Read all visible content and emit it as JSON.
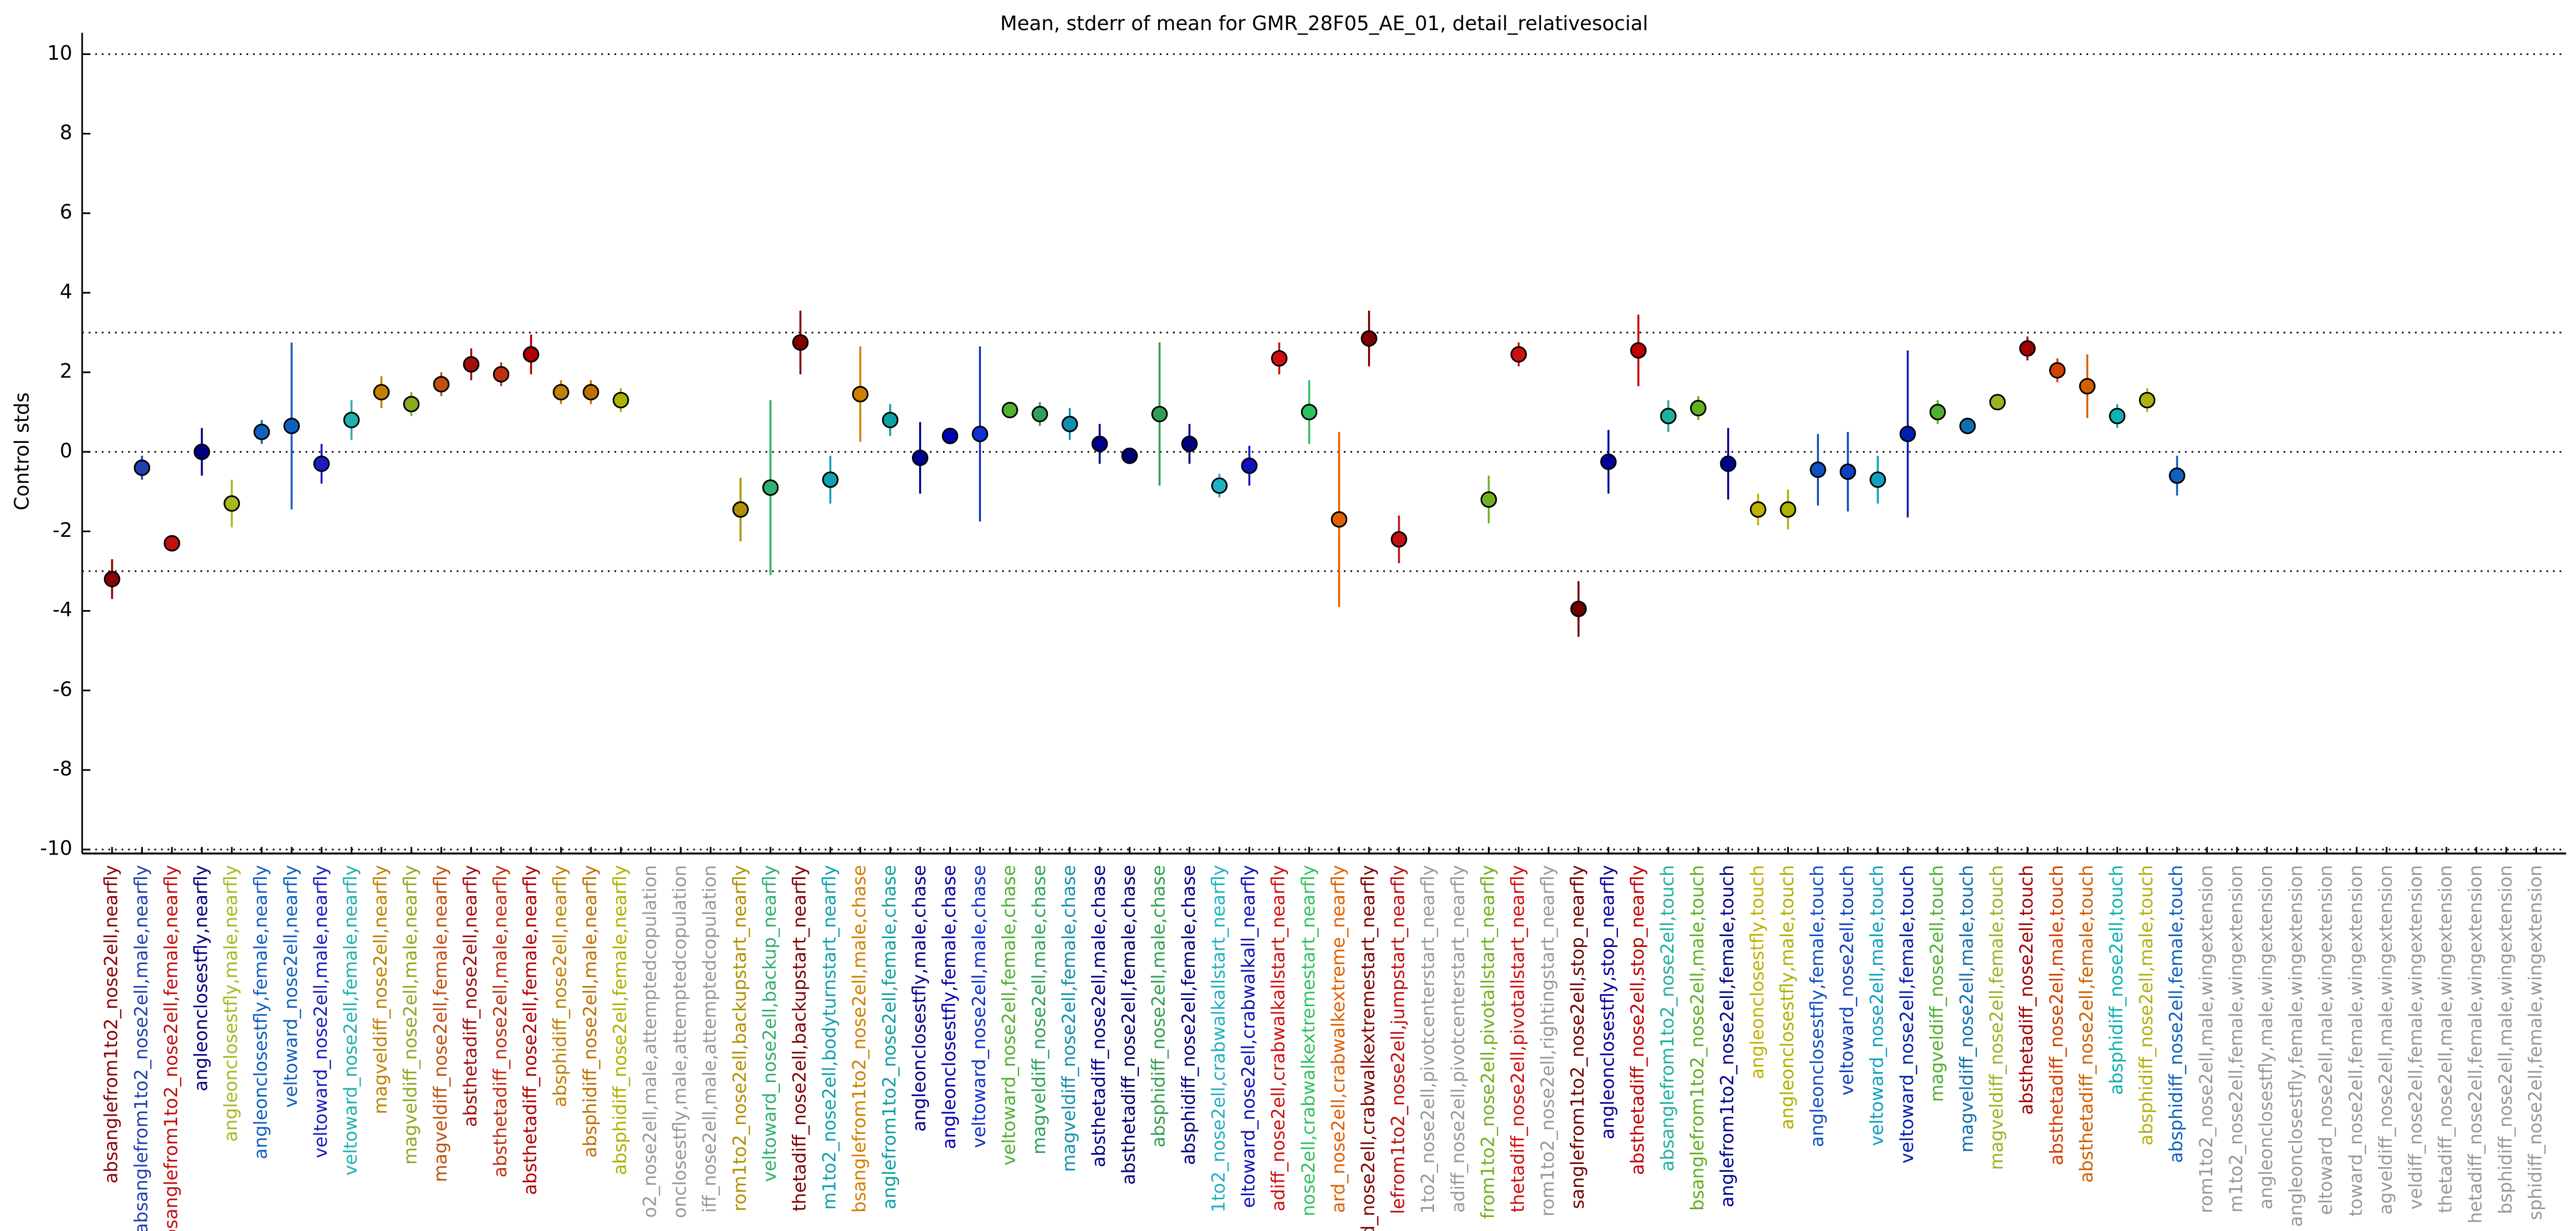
{
  "chart_data": {
    "type": "errorbar",
    "title": "Mean, stderr of mean for GMR_28F05_AE_01, detail_relativesocial",
    "y_label": "Control stds",
    "categories": [
      "absanglefrom1to2_nose2ell,nearfly",
      "absanglefrom1to2_nose2ell,male,nearfly",
      "absanglefrom1to2_nose2ell,female,nearfly",
      "angleonclosestfly,nearfly",
      "angleonclosestfly,male,nearfly",
      "angleonclosestfly,female,nearfly",
      "veltoward_nose2ell,nearfly",
      "veltoward_nose2ell,male,nearfly",
      "veltoward_nose2ell,female,nearfly",
      "magveldiff_nose2ell,nearfly",
      "magveldiff_nose2ell,male,nearfly",
      "magveldiff_nose2ell,female,nearfly",
      "absthetadiff_nose2ell,nearfly",
      "absthetadiff_nose2ell,male,nearfly",
      "absthetadiff_nose2ell,female,nearfly",
      "absphidiff_nose2ell,nearfly",
      "absphidiff_nose2ell,male,nearfly",
      "absphidiff_nose2ell,female,nearfly",
      "o2_nose2ell,male,attemptedcopulation",
      "onclosestfly,male,attemptedcopulation",
      "iff_nose2ell,male,attemptedcopulation",
      "rom1to2_nose2ell,backupstart_nearfly",
      "veltoward_nose2ell,backup_nearfly",
      "thetadiff_nose2ell,backupstart_nearfly",
      "m1to2_nose2ell,bodyturnstart_nearfly",
      "bsanglefrom1to2_nose2ell,male,chase",
      "anglefrom1to2_nose2ell,female,chase",
      "angleonclosestfly,male,chase",
      "angleonclosestfly,female,chase",
      "veltoward_nose2ell,male,chase",
      "veltoward_nose2ell,female,chase",
      "magveldiff_nose2ell,male,chase",
      "magveldiff_nose2ell,female,chase",
      "absthetadiff_nose2ell,male,chase",
      "absthetadiff_nose2ell,female,chase",
      "absphidiff_nose2ell,male,chase",
      "absphidiff_nose2ell,female,chase",
      "1to2_nose2ell,crabwalkallstart_nearfly",
      "eltoward_nose2ell,crabwalkall_nearfly",
      "adiff_nose2ell,crabwalkallstart_nearfly",
      "nose2ell,crabwalkextremestart_nearfly",
      "ard_nose2ell,crabwalkextreme_nearfly",
      "ard_nose2ell,crabwalkextremestart_nearfly",
      "lefrom1to2_nose2ell,jumpstart_nearfly",
      "1to2_nose2ell,pivotcenterstart_nearfly",
      "adiff_nose2ell,pivotcenterstart_nearfly",
      "from1to2_nose2ell,pivotallstart_nearfly",
      "thetadiff_nose2ell,pivotallstart_nearfly",
      "rom1to2_nose2ell,rightingstart_nearfly",
      "sanglefrom1to2_nose2ell,stop_nearfly",
      "angleonclosestfly,stop_nearfly",
      "absthetadiff_nose2ell,stop_nearfly",
      "absanglefrom1to2_nose2ell,touch",
      "bsanglefrom1to2_nose2ell,male,touch",
      "anglefrom1to2_nose2ell,female,touch",
      "angleonclosestfly,touch",
      "angleonclosestfly,male,touch",
      "angleonclosestfly,female,touch",
      "veltoward_nose2ell,touch",
      "veltoward_nose2ell,male,touch",
      "veltoward_nose2ell,female,touch",
      "magveldiff_nose2ell,touch",
      "magveldiff_nose2ell,male,touch",
      "magveldiff_nose2ell,female,touch",
      "absthetadiff_nose2ell,touch",
      "absthetadiff_nose2ell,male,touch",
      "absthetadiff_nose2ell,female,touch",
      "absphidiff_nose2ell,touch",
      "absphidiff_nose2ell,male,touch",
      "absphidiff_nose2ell,female,touch",
      "rom1to2_nose2ell,male,wingextension",
      "m1to2_nose2ell,female,wingextension",
      "angleonclosestfly,male,wingextension",
      "angleonclosestfly,female,wingextension",
      "eltoward_nose2ell,male,wingextension",
      "toward_nose2ell,female,wingextension",
      "agveldiff_nose2ell,male,wingextension",
      "veldiff_nose2ell,female,wingextension",
      "thetadiff_nose2ell,male,wingextension",
      "hetadiff_nose2ell,female,wingextension",
      "bsphidiff_nose2ell,male,wingextension",
      "sphidiff_nose2ell,female,wingextension"
    ],
    "values": [
      -3.2,
      -0.4,
      -2.3,
      0.0,
      -1.3,
      0.5,
      0.65,
      -0.3,
      0.8,
      1.5,
      1.2,
      1.7,
      2.2,
      1.95,
      2.45,
      1.5,
      1.5,
      1.3,
      null,
      null,
      null,
      -1.45,
      -0.9,
      2.75,
      -0.7,
      1.45,
      0.8,
      -0.15,
      0.4,
      0.45,
      1.05,
      0.95,
      0.7,
      0.2,
      -0.1,
      0.95,
      0.2,
      -0.85,
      -0.35,
      2.35,
      1.0,
      -1.7,
      2.85,
      -2.2,
      null,
      null,
      -1.2,
      2.45,
      null,
      -3.95,
      -0.25,
      2.55,
      0.9,
      1.1,
      -0.3,
      -1.45,
      -1.45,
      -0.45,
      -0.5,
      -0.7,
      0.45,
      1.0,
      0.65,
      1.25,
      2.6,
      2.05,
      1.65,
      0.9,
      1.3,
      -0.6,
      null,
      null,
      null,
      null,
      null,
      null,
      null,
      null,
      null,
      null,
      null,
      null
    ],
    "errors": [
      0.5,
      0.3,
      0.2,
      0.6,
      0.6,
      0.3,
      2.1,
      0.5,
      0.5,
      0.4,
      0.3,
      0.3,
      0.4,
      0.3,
      0.5,
      0.3,
      0.3,
      0.3,
      null,
      null,
      null,
      0.8,
      2.2,
      0.8,
      0.6,
      1.2,
      0.4,
      0.9,
      0.2,
      2.2,
      0.2,
      0.3,
      0.4,
      0.5,
      0.1,
      1.8,
      0.5,
      0.3,
      0.5,
      0.4,
      0.8,
      2.2,
      0.7,
      0.6,
      null,
      null,
      0.6,
      0.3,
      null,
      0.7,
      0.8,
      0.9,
      0.4,
      0.3,
      0.9,
      0.4,
      0.5,
      0.9,
      1.0,
      0.6,
      2.1,
      0.3,
      0.2,
      0.2,
      0.3,
      0.3,
      0.8,
      0.3,
      0.3,
      0.5,
      null,
      null,
      null,
      null,
      null,
      null,
      null,
      null,
      null,
      null,
      null,
      null
    ],
    "colors": [
      "#8b0000",
      "#2040b0",
      "#c01010",
      "#000080",
      "#a8b820",
      "#1060c0",
      "#1060c0",
      "#1c1cc0",
      "#20b0b0",
      "#c08000",
      "#8aaa20",
      "#c05010",
      "#a01010",
      "#c03010",
      "#b00000",
      "#c08000",
      "#c07000",
      "#b0b000",
      "#999999",
      "#999999",
      "#999999",
      "#b09000",
      "#30b070",
      "#800000",
      "#10a0b0",
      "#d08000",
      "#10a0a0",
      "#000090",
      "#0000b0",
      "#1030d0",
      "#50b030",
      "#30a060",
      "#1090b0",
      "#000090",
      "#000070",
      "#30a050",
      "#000080",
      "#20b0c0",
      "#1010c0",
      "#d01010",
      "#30c060",
      "#e06000",
      "#800000",
      "#c01010",
      "#999999",
      "#999999",
      "#70b020",
      "#d01010",
      "#999999",
      "#700000",
      "#0000a0",
      "#c00000",
      "#20b0a0",
      "#60b020",
      "#000090",
      "#c0b000",
      "#b0b000",
      "#1050c0",
      "#1040c0",
      "#10a0c0",
      "#0020b0",
      "#50b030",
      "#1070b0",
      "#a0b020",
      "#a00000",
      "#d04000",
      "#d06000",
      "#10b0b0",
      "#b0b010",
      "#1060c0",
      "#999999",
      "#999999",
      "#999999",
      "#999999",
      "#999999",
      "#999999",
      "#999999",
      "#999999",
      "#999999",
      "#999999",
      "#999999",
      "#999999"
    ],
    "ylim": [
      -10.1,
      10.1
    ],
    "yticks": [
      -10,
      -8,
      -6,
      -4,
      -2,
      0,
      2,
      4,
      6,
      8,
      10
    ],
    "reference_lines": [
      10,
      3,
      0,
      -3,
      -10
    ]
  }
}
